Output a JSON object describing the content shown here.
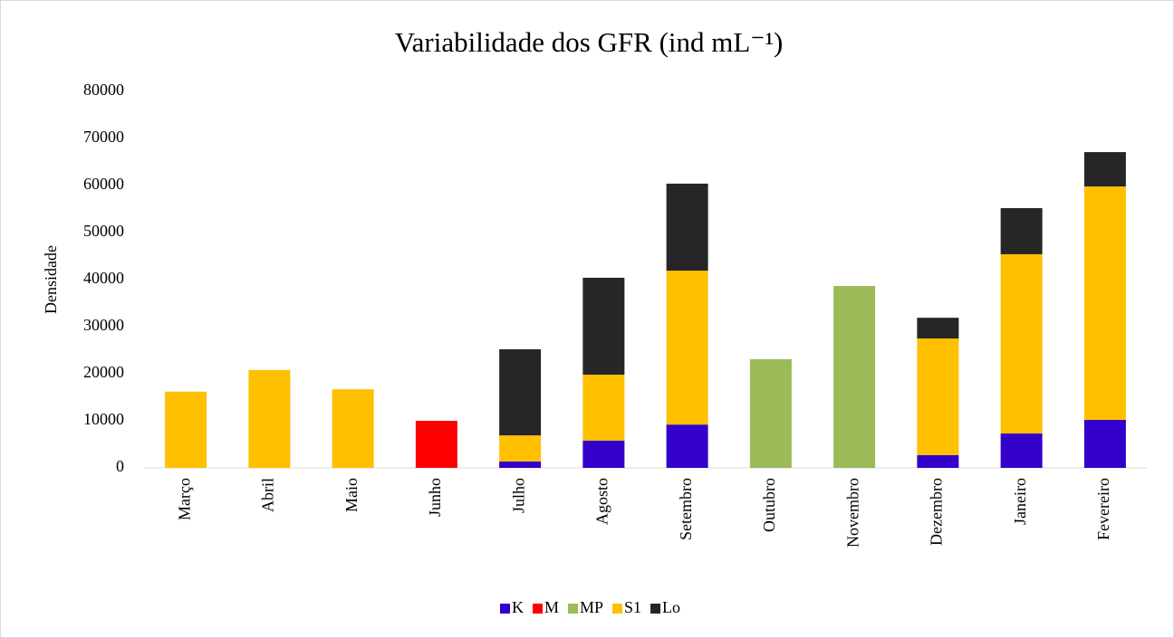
{
  "chart_data": {
    "type": "stacked_bar",
    "title": "Variabilidade dos GFR (ind mL⁻¹)",
    "y_label": "Densidade",
    "categories": [
      "Março",
      "Abril",
      "Maio",
      "Junho",
      "Julho",
      "Agosto",
      "Setembro",
      "Outubro",
      "Novembro",
      "Dezembro",
      "Janeiro",
      "Fevereiro"
    ],
    "series": [
      {
        "name": "K",
        "color": "#3300cc",
        "values": [
          null,
          null,
          null,
          null,
          1350,
          5800,
          9200,
          null,
          null,
          2700,
          7300,
          10200
        ]
      },
      {
        "name": "M",
        "color": "#ff0000",
        "values": [
          null,
          null,
          null,
          10000,
          null,
          null,
          null,
          null,
          null,
          null,
          null,
          null
        ]
      },
      {
        "name": "MP",
        "color": "#9bbb59",
        "values": [
          null,
          null,
          null,
          null,
          null,
          null,
          null,
          23100,
          38650,
          null,
          null,
          null
        ]
      },
      {
        "name": "S1",
        "color": "#ffc000",
        "values": [
          16200,
          20800,
          16700,
          null,
          5550,
          14000,
          32700,
          null,
          null,
          24800,
          38100,
          49600
        ]
      },
      {
        "name": "Lo",
        "color": "#262626",
        "values": [
          null,
          null,
          null,
          null,
          18300,
          20600,
          18500,
          null,
          null,
          4400,
          9800,
          7300
        ]
      }
    ],
    "ylim": [
      0,
      80000
    ],
    "yticks": [
      0,
      10000,
      20000,
      30000,
      40000,
      50000,
      60000,
      70000,
      80000
    ],
    "legend": "bottom"
  }
}
